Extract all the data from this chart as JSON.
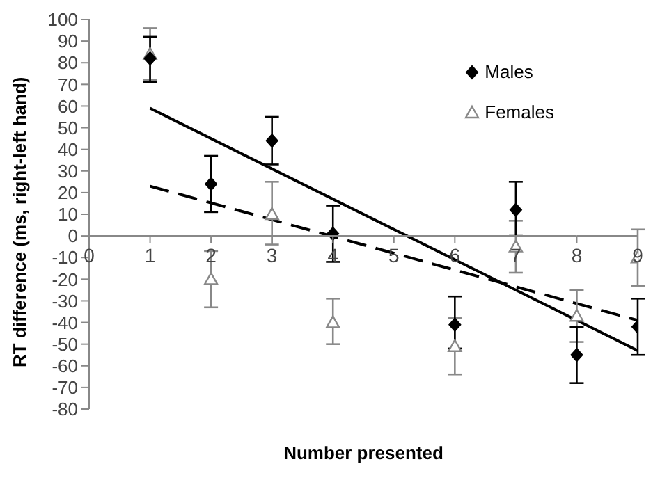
{
  "chart_data": {
    "type": "scatter",
    "xlabel": "Number presented",
    "ylabel": "RT difference (ms, right-left hand)",
    "xlim": [
      0,
      9
    ],
    "xticks": [
      0,
      1,
      2,
      3,
      4,
      5,
      6,
      7,
      8,
      9
    ],
    "ylim": [
      -80,
      100
    ],
    "yticks": [
      -80,
      -70,
      -60,
      -50,
      -40,
      -30,
      -20,
      -10,
      0,
      10,
      20,
      30,
      40,
      50,
      60,
      70,
      80,
      90,
      100
    ],
    "grid": false,
    "legend": "top right",
    "series": [
      {
        "name": "Males",
        "marker": "diamond",
        "color": "#000000",
        "x": [
          1,
          2,
          3,
          4,
          6,
          7,
          8,
          9
        ],
        "values": [
          82,
          24,
          44,
          1,
          -41,
          12,
          -55,
          -42
        ],
        "errors": [
          [
            71,
            92
          ],
          [
            11,
            37
          ],
          [
            33,
            55
          ],
          [
            -12,
            14
          ],
          [
            -52,
            -28
          ],
          [
            0,
            25
          ],
          [
            -68,
            -42
          ],
          [
            -55,
            -29
          ]
        ]
      },
      {
        "name": "Females",
        "marker": "triangle",
        "color": "#888888",
        "x": [
          1,
          2,
          3,
          4,
          6,
          7,
          8,
          9
        ],
        "values": [
          84,
          -20,
          10,
          -40,
          -51,
          -5,
          -37,
          -10
        ],
        "errors": [
          [
            72,
            96
          ],
          [
            -33,
            -7
          ],
          [
            -4,
            25
          ],
          [
            -50,
            -29
          ],
          [
            -64,
            -38
          ],
          [
            -17,
            7
          ],
          [
            -49,
            -25
          ],
          [
            -23,
            3
          ]
        ]
      },
      {
        "type": "line",
        "line_style": "solid",
        "color": "#000000",
        "x": [
          1,
          9
        ],
        "values": [
          59,
          -53
        ]
      },
      {
        "type": "line",
        "line_style": "dashed",
        "color": "#000000",
        "x": [
          1,
          9
        ],
        "values": [
          23,
          -39
        ]
      }
    ]
  }
}
